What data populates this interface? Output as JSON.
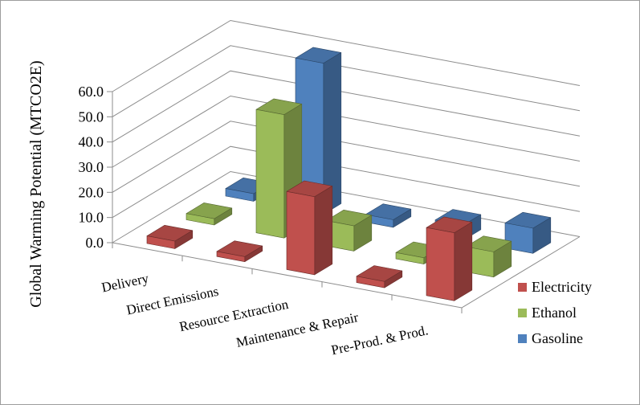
{
  "window": {
    "background": "#ffffff",
    "border_color": "#9d9d9d"
  },
  "chart_data": {
    "type": "bar",
    "subtype": "3d-column",
    "title": "",
    "ylabel": "Global Warming Potential (MTCO2E)",
    "xlabel": "",
    "categories": [
      "Delivery",
      "Direct Emissions",
      "Resource Extraction",
      "Maintenance & Repair",
      "Pre-Prod. & Prod."
    ],
    "series": [
      {
        "name": "Electricity",
        "color": "#C0504D",
        "values": [
          3.0,
          2.0,
          31.0,
          2.5,
          27.0
        ]
      },
      {
        "name": "Ethanol",
        "color": "#9BBB59",
        "values": [
          2.5,
          49.0,
          10.0,
          2.5,
          10.0
        ]
      },
      {
        "name": "Gasoline",
        "color": "#4F81BD",
        "values": [
          3.0,
          60.0,
          3.0,
          6.0,
          10.0
        ]
      }
    ],
    "y_axis": {
      "min": 0,
      "max": 60,
      "step": 10,
      "tick_labels": [
        "0.0",
        "10.0",
        "20.0",
        "30.0",
        "40.0",
        "50.0",
        "60.0"
      ]
    },
    "legend": {
      "position": "right",
      "items": [
        "Electricity",
        "Ethanol",
        "Gasoline"
      ]
    },
    "gridlines": true,
    "axis_color": "#8c8c8c",
    "text_color": "#000000"
  }
}
